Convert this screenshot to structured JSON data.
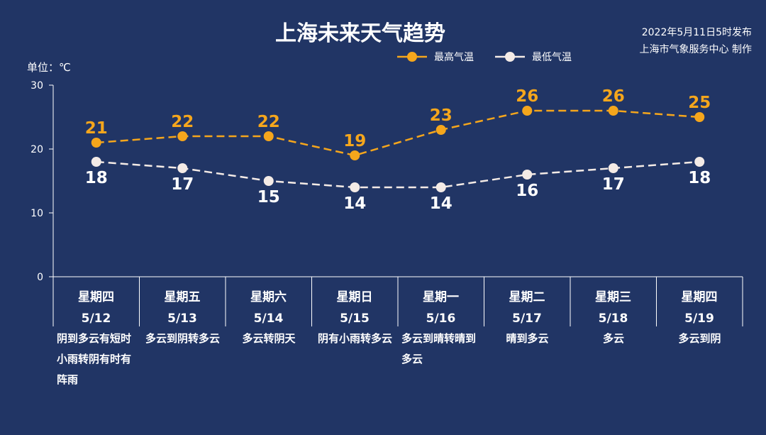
{
  "header": {
    "title": "上海未来天气趋势",
    "published": "2022年5月11日5时发布",
    "publisher": "上海市气象服务中心 制作",
    "unit": "单位：℃"
  },
  "colors": {
    "background": "#213565",
    "high": "#f5a61c",
    "low": "#f4ebe6"
  },
  "chart_data": {
    "type": "line",
    "categories": [
      "星期四",
      "星期五",
      "星期六",
      "星期日",
      "星期一",
      "星期二",
      "星期三",
      "星期四"
    ],
    "dates": [
      "5/12",
      "5/13",
      "5/14",
      "5/15",
      "5/16",
      "5/17",
      "5/18",
      "5/19"
    ],
    "weather": [
      "阴到多云有短时小雨转阴有时有阵雨",
      "多云到阴转多云",
      "多云转阴天",
      "阴有小雨转多云",
      "多云到晴转晴到多云",
      "晴到多云",
      "多云",
      "多云到阴"
    ],
    "series": [
      {
        "name": "最高气温",
        "values": [
          21,
          22,
          22,
          19,
          23,
          26,
          26,
          25
        ]
      },
      {
        "name": "最低气温",
        "values": [
          18,
          17,
          15,
          14,
          14,
          16,
          17,
          18
        ]
      }
    ],
    "ylim": [
      0,
      30
    ],
    "yticks": [
      "0",
      "10",
      "20",
      "30"
    ],
    "ylabel": "单位：℃",
    "legend": "top-right",
    "grid": false
  }
}
